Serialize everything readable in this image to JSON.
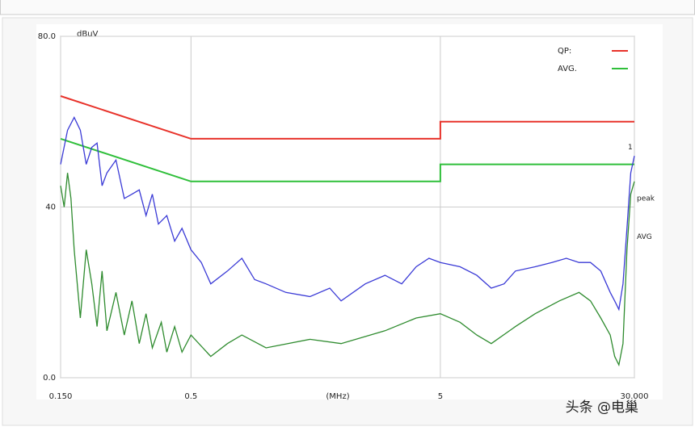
{
  "chart_data": {
    "type": "line",
    "log_x": true,
    "grid": true,
    "y_unit": "dBuV",
    "x_label": "(MHz)",
    "xlim": [
      0.15,
      30
    ],
    "ylim": [
      0,
      80
    ],
    "xticks": [
      {
        "value": 0.15,
        "label": "0.150"
      },
      0.5,
      5,
      {
        "value": 30,
        "label": "30.000"
      }
    ],
    "yticks": [
      {
        "value": 0,
        "label": "0.0"
      },
      40,
      {
        "value": 80,
        "label": "80.0"
      }
    ],
    "legend": "top-right",
    "series": [
      {
        "name": "QP:",
        "color": "#e8322a",
        "x": [
          0.15,
          0.5,
          5,
          5,
          30
        ],
        "values": [
          66,
          56,
          56,
          60,
          60
        ]
      },
      {
        "name": "AVG.",
        "color": "#2fbf3a",
        "x": [
          0.15,
          0.5,
          5,
          5,
          30
        ],
        "values": [
          56,
          46,
          46,
          50,
          50
        ]
      },
      {
        "color": "#3a3ad6",
        "x": [
          0.15,
          0.16,
          0.17,
          0.18,
          0.19,
          0.2,
          0.21,
          0.22,
          0.23,
          0.25,
          0.27,
          0.29,
          0.31,
          0.33,
          0.35,
          0.37,
          0.4,
          0.43,
          0.46,
          0.5,
          0.55,
          0.6,
          0.7,
          0.8,
          0.9,
          1,
          1.2,
          1.5,
          1.8,
          2,
          2.5,
          3,
          3.5,
          4,
          4.5,
          5,
          6,
          7,
          8,
          9,
          10,
          12,
          14,
          16,
          18,
          20,
          22,
          24,
          25,
          26,
          27,
          28,
          29,
          30
        ],
        "values": [
          50,
          58,
          61,
          58,
          50,
          54,
          55,
          45,
          48,
          51,
          42,
          43,
          44,
          38,
          43,
          36,
          38,
          32,
          35,
          30,
          27,
          22,
          25,
          28,
          23,
          22,
          20,
          19,
          21,
          18,
          22,
          24,
          22,
          26,
          28,
          27,
          26,
          24,
          21,
          22,
          25,
          26,
          27,
          28,
          27,
          27,
          25,
          20,
          18,
          16,
          22,
          35,
          48,
          52
        ]
      },
      {
        "color": "#2e8b2e",
        "x": [
          0.15,
          0.155,
          0.16,
          0.165,
          0.17,
          0.18,
          0.19,
          0.2,
          0.21,
          0.22,
          0.23,
          0.25,
          0.27,
          0.29,
          0.31,
          0.33,
          0.35,
          0.38,
          0.4,
          0.43,
          0.46,
          0.5,
          0.6,
          0.7,
          0.8,
          1,
          1.5,
          2,
          3,
          4,
          5,
          6,
          7,
          8,
          10,
          12,
          15,
          18,
          20,
          22,
          24,
          25,
          26,
          27,
          28,
          29,
          30
        ],
        "values": [
          45,
          40,
          48,
          42,
          30,
          14,
          30,
          22,
          12,
          25,
          11,
          20,
          10,
          18,
          8,
          15,
          7,
          13,
          6,
          12,
          6,
          10,
          5,
          8,
          10,
          7,
          9,
          8,
          11,
          14,
          15,
          13,
          10,
          8,
          12,
          15,
          18,
          20,
          18,
          14,
          10,
          5,
          3,
          8,
          30,
          43,
          46
        ]
      }
    ],
    "annotations": [
      {
        "text": "1",
        "x": 30,
        "y": 54
      },
      {
        "text": "peak",
        "x": 30,
        "y": 42
      },
      {
        "text": "AVG",
        "x": 30,
        "y": 33
      }
    ],
    "watermark": "头条 @电巢"
  }
}
